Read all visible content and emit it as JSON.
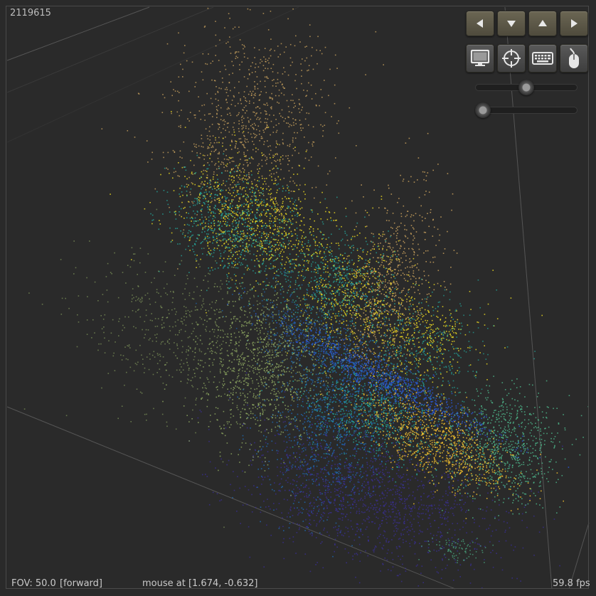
{
  "status": {
    "point_count": "2119615",
    "fov": "FOV: 50.0",
    "mode": "[forward]",
    "mouse": "mouse at [1.674, -0.632]",
    "fps": "59.8 fps"
  },
  "nav_buttons": [
    {
      "name": "left-arrow-icon"
    },
    {
      "name": "down-arrow-icon"
    },
    {
      "name": "up-arrow-icon"
    },
    {
      "name": "right-arrow-icon"
    }
  ],
  "tool_buttons": [
    {
      "name": "monitor-icon"
    },
    {
      "name": "crosshair-icon"
    },
    {
      "name": "keyboard-icon"
    },
    {
      "name": "mouse-icon"
    }
  ],
  "sliders": [
    {
      "name": "slider-1",
      "value": 0.5
    },
    {
      "name": "slider-2",
      "value": 0.07
    }
  ],
  "colors": {
    "background": "#2a2a2a",
    "button": "#5c5849",
    "clusters": [
      "#d2a860",
      "#f2e021",
      "#23b3a8",
      "#1e74c9",
      "#3b2f9a",
      "#98b467",
      "#52c494",
      "#f5c12e",
      "#2a58d8"
    ]
  }
}
